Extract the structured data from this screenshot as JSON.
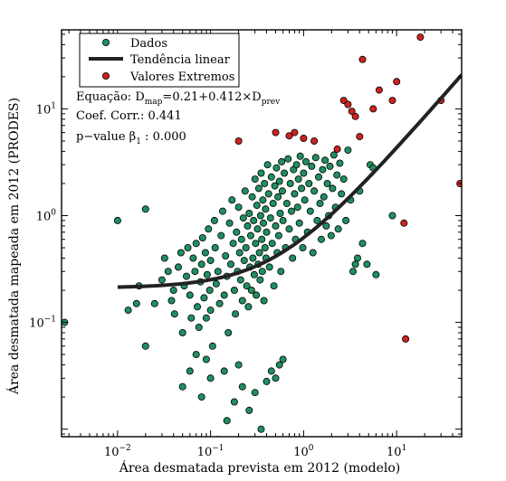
{
  "chart_data": {
    "type": "scatter",
    "title": "",
    "xlabel": "Área desmatada prevista em 2012 (modelo)",
    "ylabel": "Área desmatada mapeada em 2012 (PRODES)",
    "xscale": "log",
    "yscale": "log",
    "xlim": [
      0.0025,
      50
    ],
    "ylim": [
      0.0085,
      55
    ],
    "x_ticks": [
      {
        "value": 0.01,
        "base": "10",
        "exp": "−2"
      },
      {
        "value": 0.1,
        "base": "10",
        "exp": "−1"
      },
      {
        "value": 1,
        "base": "10",
        "exp": "0"
      },
      {
        "value": 10,
        "base": "10",
        "exp": "1"
      }
    ],
    "y_ticks": [
      {
        "value": 0.1,
        "base": "10",
        "exp": "−1"
      },
      {
        "value": 1,
        "base": "10",
        "exp": "0"
      },
      {
        "value": 10,
        "base": "10",
        "exp": "1"
      }
    ],
    "legend": {
      "placement": "top-left",
      "entries": [
        {
          "label": "Dados",
          "kind": "marker",
          "color": "#1f8f5f"
        },
        {
          "label": "Tendência linear",
          "kind": "line",
          "color": "#222222"
        },
        {
          "label": "Valores Extremos",
          "kind": "marker",
          "color": "#cc2222"
        }
      ]
    },
    "annotations": {
      "equation_prefix": "Equação: ",
      "equation_D": "D",
      "equation_map": "map",
      "equation_mid": "=0.21+0.412×D",
      "equation_prev": "prev",
      "corr_label": "Coef. Corr.: 0.441",
      "pvalue_prefix": "p−value  β",
      "pvalue_sub": "1",
      "pvalue_suffix": " :  0.000"
    },
    "trend": {
      "intercept": 0.21,
      "slope": 0.412
    },
    "colors": {
      "data": "#1f8f5f",
      "extreme": "#cc2222",
      "trend": "#222222"
    },
    "series": [
      {
        "name": "Dados",
        "points": [
          [
            0.0027,
            0.1
          ],
          [
            0.01,
            0.9
          ],
          [
            0.013,
            0.13
          ],
          [
            0.016,
            0.15
          ],
          [
            0.02,
            1.15
          ],
          [
            0.02,
            0.06
          ],
          [
            0.017,
            0.22
          ],
          [
            0.025,
            0.15
          ],
          [
            0.03,
            0.25
          ],
          [
            0.032,
            0.4
          ],
          [
            0.035,
            0.3
          ],
          [
            0.038,
            0.16
          ],
          [
            0.04,
            0.2
          ],
          [
            0.041,
            0.12
          ],
          [
            0.045,
            0.33
          ],
          [
            0.048,
            0.45
          ],
          [
            0.05,
            0.08
          ],
          [
            0.052,
            0.22
          ],
          [
            0.055,
            0.27
          ],
          [
            0.057,
            0.5
          ],
          [
            0.06,
            0.18
          ],
          [
            0.062,
            0.11
          ],
          [
            0.065,
            0.4
          ],
          [
            0.068,
            0.3
          ],
          [
            0.07,
            0.55
          ],
          [
            0.072,
            0.14
          ],
          [
            0.075,
            0.09
          ],
          [
            0.078,
            0.24
          ],
          [
            0.08,
            0.35
          ],
          [
            0.082,
            0.62
          ],
          [
            0.085,
            0.17
          ],
          [
            0.088,
            0.45
          ],
          [
            0.09,
            0.11
          ],
          [
            0.092,
            0.28
          ],
          [
            0.095,
            0.75
          ],
          [
            0.098,
            0.2
          ],
          [
            0.1,
            0.38
          ],
          [
            0.1,
            0.13
          ],
          [
            0.105,
            0.06
          ],
          [
            0.11,
            0.9
          ],
          [
            0.112,
            0.5
          ],
          [
            0.115,
            0.23
          ],
          [
            0.12,
            0.3
          ],
          [
            0.125,
            0.15
          ],
          [
            0.13,
            0.65
          ],
          [
            0.135,
            1.1
          ],
          [
            0.14,
            0.18
          ],
          [
            0.145,
            0.42
          ],
          [
            0.15,
            0.27
          ],
          [
            0.155,
            0.08
          ],
          [
            0.16,
            0.85
          ],
          [
            0.165,
            0.35
          ],
          [
            0.17,
            1.4
          ],
          [
            0.175,
            0.55
          ],
          [
            0.18,
            0.2
          ],
          [
            0.185,
            0.12
          ],
          [
            0.19,
            0.7
          ],
          [
            0.195,
            0.3
          ],
          [
            0.2,
            1.2
          ],
          [
            0.205,
            0.45
          ],
          [
            0.21,
            0.25
          ],
          [
            0.215,
            0.6
          ],
          [
            0.22,
            0.16
          ],
          [
            0.225,
            0.95
          ],
          [
            0.23,
            0.38
          ],
          [
            0.235,
            1.7
          ],
          [
            0.24,
            0.5
          ],
          [
            0.245,
            0.22
          ],
          [
            0.25,
            0.8
          ],
          [
            0.255,
            0.14
          ],
          [
            0.26,
            1.05
          ],
          [
            0.265,
            0.33
          ],
          [
            0.27,
            0.65
          ],
          [
            0.275,
            0.2
          ],
          [
            0.28,
            1.5
          ],
          [
            0.285,
            0.4
          ],
          [
            0.29,
            0.9
          ],
          [
            0.295,
            0.28
          ],
          [
            0.3,
            2.2
          ],
          [
            0.305,
            0.55
          ],
          [
            0.31,
            0.18
          ],
          [
            0.315,
            1.25
          ],
          [
            0.32,
            0.75
          ],
          [
            0.325,
            0.35
          ],
          [
            0.33,
            1.8
          ],
          [
            0.335,
            0.45
          ],
          [
            0.34,
            0.25
          ],
          [
            0.345,
            1.0
          ],
          [
            0.35,
            2.5
          ],
          [
            0.355,
            0.6
          ],
          [
            0.36,
            0.3
          ],
          [
            0.365,
            1.4
          ],
          [
            0.37,
            0.85
          ],
          [
            0.375,
            0.16
          ],
          [
            0.38,
            2.0
          ],
          [
            0.385,
            0.5
          ],
          [
            0.39,
            1.15
          ],
          [
            0.395,
            0.4
          ],
          [
            0.4,
            0.7
          ],
          [
            0.41,
            3.0
          ],
          [
            0.42,
            1.6
          ],
          [
            0.43,
            0.33
          ],
          [
            0.44,
            0.95
          ],
          [
            0.45,
            2.3
          ],
          [
            0.46,
            0.55
          ],
          [
            0.47,
            1.3
          ],
          [
            0.48,
            0.22
          ],
          [
            0.49,
            1.9
          ],
          [
            0.5,
            0.8
          ],
          [
            0.51,
            2.8
          ],
          [
            0.52,
            0.45
          ],
          [
            0.53,
            1.5
          ],
          [
            0.54,
            0.65
          ],
          [
            0.55,
            2.1
          ],
          [
            0.56,
            1.05
          ],
          [
            0.57,
            0.3
          ],
          [
            0.58,
            3.2
          ],
          [
            0.59,
            1.7
          ],
          [
            0.6,
            0.9
          ],
          [
            0.62,
            2.5
          ],
          [
            0.64,
            0.5
          ],
          [
            0.66,
            1.3
          ],
          [
            0.68,
            3.4
          ],
          [
            0.7,
            0.75
          ],
          [
            0.72,
            2.0
          ],
          [
            0.74,
            1.1
          ],
          [
            0.76,
            0.4
          ],
          [
            0.78,
            2.7
          ],
          [
            0.8,
            1.6
          ],
          [
            0.82,
            0.6
          ],
          [
            0.84,
            3.0
          ],
          [
            0.86,
            1.2
          ],
          [
            0.88,
            2.2
          ],
          [
            0.9,
            0.85
          ],
          [
            0.92,
            3.6
          ],
          [
            0.95,
            1.8
          ],
          [
            0.98,
            0.5
          ],
          [
            1.0,
            2.5
          ],
          [
            1.03,
            1.4
          ],
          [
            1.06,
            3.2
          ],
          [
            1.1,
            0.7
          ],
          [
            1.14,
            2.0
          ],
          [
            1.18,
            1.1
          ],
          [
            1.22,
            2.9
          ],
          [
            1.26,
            0.45
          ],
          [
            1.3,
            1.7
          ],
          [
            1.35,
            3.5
          ],
          [
            1.4,
            0.9
          ],
          [
            1.45,
            2.3
          ],
          [
            1.5,
            1.3
          ],
          [
            1.55,
            0.6
          ],
          [
            1.6,
            2.7
          ],
          [
            1.65,
            1.5
          ],
          [
            1.7,
            3.3
          ],
          [
            1.75,
            0.8
          ],
          [
            1.8,
            2.0
          ],
          [
            1.86,
            1.0
          ],
          [
            1.92,
            2.9
          ],
          [
            1.98,
            0.65
          ],
          [
            2.05,
            1.8
          ],
          [
            2.12,
            3.7
          ],
          [
            2.2,
            1.2
          ],
          [
            2.28,
            2.4
          ],
          [
            2.36,
            0.75
          ],
          [
            2.45,
            3.1
          ],
          [
            2.55,
            1.6
          ],
          [
            2.7,
            2.2
          ],
          [
            2.85,
            0.9
          ],
          [
            3.0,
            4.1
          ],
          [
            3.2,
            1.4
          ],
          [
            3.4,
            0.3
          ],
          [
            3.6,
            0.35
          ],
          [
            3.8,
            0.4
          ],
          [
            4.0,
            1.7
          ],
          [
            4.3,
            0.55
          ],
          [
            4.8,
            0.35
          ],
          [
            5.2,
            3.0
          ],
          [
            5.6,
            2.8
          ],
          [
            6.0,
            0.28
          ],
          [
            9.0,
            1.0
          ],
          [
            0.12,
            0.008
          ],
          [
            0.15,
            0.012
          ],
          [
            0.18,
            0.018
          ],
          [
            0.22,
            0.025
          ],
          [
            0.26,
            0.015
          ],
          [
            0.3,
            0.022
          ],
          [
            0.35,
            0.01
          ],
          [
            0.4,
            0.028
          ],
          [
            0.45,
            0.035
          ],
          [
            0.5,
            0.03
          ],
          [
            0.55,
            0.04
          ],
          [
            0.6,
            0.045
          ],
          [
            0.08,
            0.02
          ],
          [
            0.1,
            0.03
          ],
          [
            0.14,
            0.035
          ],
          [
            0.07,
            0.05
          ],
          [
            0.06,
            0.035
          ],
          [
            0.05,
            0.025
          ],
          [
            0.09,
            0.045
          ],
          [
            0.2,
            0.04
          ]
        ]
      },
      {
        "name": "Valores Extremos",
        "points": [
          [
            0.2,
            5.0
          ],
          [
            0.5,
            6.0
          ],
          [
            0.7,
            5.6
          ],
          [
            0.8,
            6.0
          ],
          [
            1.0,
            5.3
          ],
          [
            1.3,
            5.0
          ],
          [
            2.3,
            4.2
          ],
          [
            2.7,
            12.0
          ],
          [
            3.0,
            11.0
          ],
          [
            3.3,
            9.5
          ],
          [
            3.6,
            8.5
          ],
          [
            4.0,
            5.5
          ],
          [
            4.3,
            29.0
          ],
          [
            5.6,
            10.0
          ],
          [
            6.5,
            15.0
          ],
          [
            9.0,
            12.0
          ],
          [
            10.0,
            18.0
          ],
          [
            12.0,
            0.85
          ],
          [
            12.5,
            0.07
          ],
          [
            18.0,
            47.0
          ],
          [
            30.0,
            12.0
          ],
          [
            48.0,
            2.0
          ]
        ]
      }
    ]
  }
}
